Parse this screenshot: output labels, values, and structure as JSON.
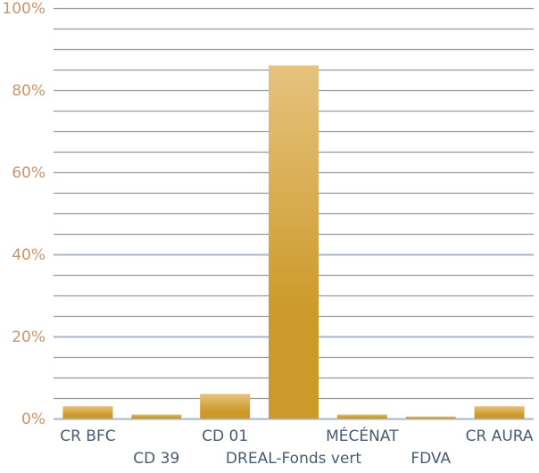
{
  "chart_data": {
    "type": "bar",
    "title": "",
    "xlabel": "",
    "ylabel": "",
    "ylim": [
      0,
      100
    ],
    "y_ticks": [
      "0%",
      "20%",
      "40%",
      "60%",
      "80%",
      "100%"
    ],
    "y_tick_values": [
      0,
      20,
      40,
      60,
      80,
      100
    ],
    "minor_grid_step": 5,
    "highlighted_gridlines": [
      20,
      40
    ],
    "categories": [
      "CR BFC",
      "CD 39",
      "CD 01",
      "DREAL-Fonds vert",
      "MÉCÉNAT",
      "FDVA",
      "CR AURA"
    ],
    "values": [
      3,
      1,
      6,
      86,
      1,
      0.5,
      3
    ],
    "label_rows": [
      0,
      1,
      0,
      1,
      0,
      1,
      0
    ],
    "colors": {
      "bar_top": "#e6c27e",
      "bar_bottom": "#cc9a2a",
      "gridline": "#999999",
      "gridline_highlight": "#a8b6c8",
      "tick_label": "#c8946a",
      "category_label": "#4a5b70"
    }
  }
}
